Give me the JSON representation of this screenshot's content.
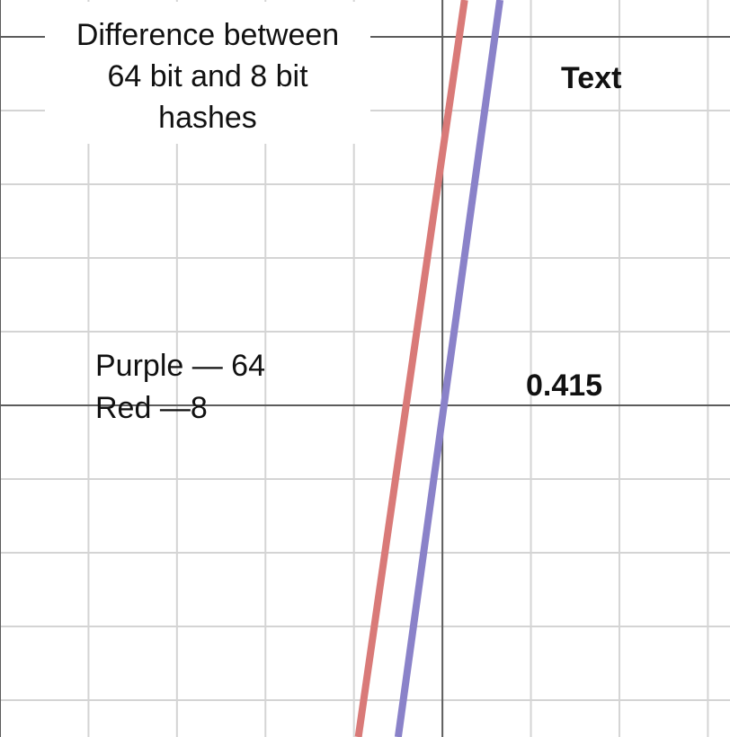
{
  "chart_data": {
    "type": "line",
    "title_lines": [
      "Difference between",
      "64 bit and 8 bit",
      "hashes"
    ],
    "legend_lines": [
      "Purple — 64",
      "Red —8"
    ],
    "annotations": [
      "Text",
      "0.415"
    ],
    "xlim": [
      -5,
      3.25
    ],
    "ylim": [
      -4.5,
      5.5
    ],
    "x_major_step": 5,
    "y_major_step": 5,
    "x_minor_step": 1,
    "y_minor_step": 1,
    "grid": true,
    "legend_placement": "left-center",
    "series": [
      {
        "color": "#d97a78",
        "points": [
          [
            -0.95,
            -4.5
          ],
          [
            0.25,
            5.5
          ]
        ]
      },
      {
        "color": "#8a82c9",
        "points": [
          [
            -0.5,
            -4.5
          ],
          [
            0.65,
            5.5
          ]
        ]
      }
    ]
  }
}
